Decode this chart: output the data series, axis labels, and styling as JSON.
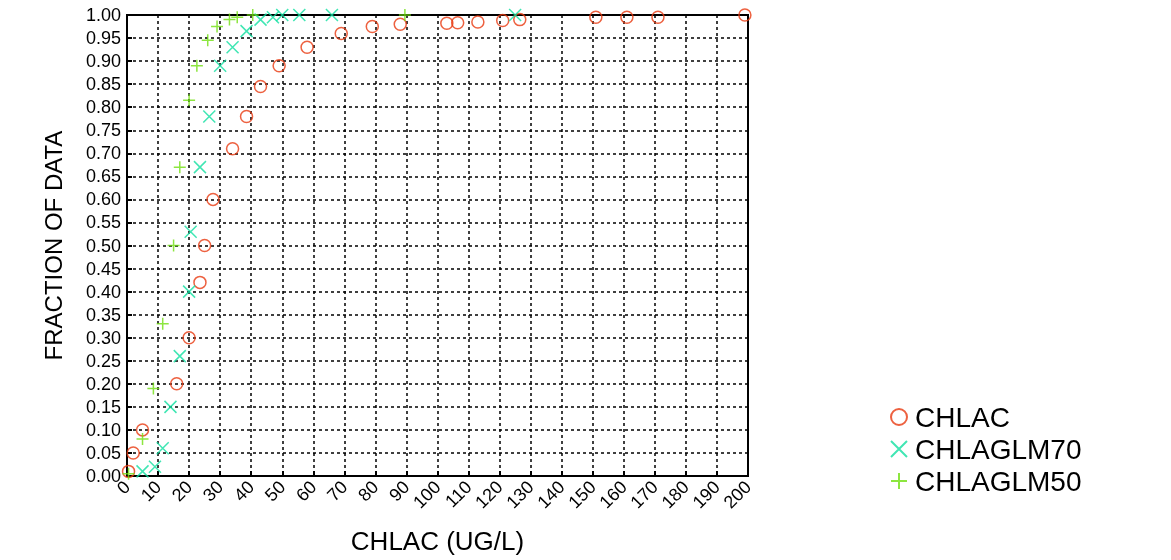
{
  "chart_data": {
    "type": "scatter",
    "xlabel": "CHLAC (UG/L)",
    "ylabel": "FRACTION OF DATA",
    "xlim": [
      0,
      200
    ],
    "xticks": [
      0,
      10,
      20,
      30,
      40,
      50,
      60,
      70,
      80,
      90,
      100,
      110,
      120,
      130,
      140,
      150,
      160,
      170,
      180,
      190,
      200
    ],
    "ylim": [
      0,
      1
    ],
    "yticks": [
      {
        "value": 0,
        "label": "0.00"
      },
      {
        "value": 0.05,
        "label": "0.05"
      },
      {
        "value": 0.1,
        "label": "0.10"
      },
      {
        "value": 0.15,
        "label": "0.15"
      },
      {
        "value": 0.2,
        "label": "0.20"
      },
      {
        "value": 0.25,
        "label": "0.25"
      },
      {
        "value": 0.3,
        "label": "0.30"
      },
      {
        "value": 0.35,
        "label": "0.35"
      },
      {
        "value": 0.4,
        "label": "0.40"
      },
      {
        "value": 0.45,
        "label": "0.45"
      },
      {
        "value": 0.5,
        "label": "0.50"
      },
      {
        "value": 0.55,
        "label": "0.55"
      },
      {
        "value": 0.6,
        "label": "0.60"
      },
      {
        "value": 0.65,
        "label": "0.65"
      },
      {
        "value": 0.7,
        "label": "0.70"
      },
      {
        "value": 0.75,
        "label": "0.75"
      },
      {
        "value": 0.8,
        "label": "0.80"
      },
      {
        "value": 0.85,
        "label": "0.85"
      },
      {
        "value": 0.9,
        "label": "0.90"
      },
      {
        "value": 0.95,
        "label": "0.95"
      },
      {
        "value": 1,
        "label": "1.00"
      }
    ],
    "grid": true,
    "legend": "bottom right",
    "series": [
      {
        "name": "CHLAC",
        "color": "#e83a10",
        "marker": "circle",
        "x": [
          0.5,
          2,
          5,
          16,
          20,
          23.5,
          25,
          27.7,
          34,
          38.5,
          43,
          49,
          58,
          69,
          79,
          88,
          103,
          106.5,
          113,
          121,
          126.5,
          151,
          161,
          171,
          199
        ],
        "values": [
          0.01,
          0.05,
          0.1,
          0.2,
          0.3,
          0.42,
          0.5,
          0.6,
          0.71,
          0.78,
          0.845,
          0.89,
          0.93,
          0.96,
          0.975,
          0.98,
          0.982,
          0.983,
          0.985,
          0.988,
          0.99,
          0.995,
          0.995,
          0.995,
          1
        ]
      },
      {
        "name": "CHLAGLM70",
        "color": "#10e0a0",
        "marker": "cross",
        "x": [
          5,
          9,
          11.5,
          14,
          17,
          20,
          20.5,
          23.5,
          26.5,
          30,
          34,
          38.5,
          43,
          47,
          50,
          55.5,
          66,
          125
        ],
        "values": [
          0.01,
          0.02,
          0.06,
          0.15,
          0.26,
          0.4,
          0.53,
          0.67,
          0.78,
          0.89,
          0.93,
          0.965,
          0.99,
          0.995,
          1,
          1,
          1,
          1
        ]
      },
      {
        "name": "CHLAGLM50",
        "color": "#70e010",
        "marker": "plus",
        "x": [
          0.5,
          5,
          8.5,
          11.5,
          15,
          17,
          20,
          22.5,
          26,
          29,
          33,
          35.5,
          40.5,
          89.5
        ],
        "values": [
          0.005,
          0.08,
          0.19,
          0.33,
          0.5,
          0.67,
          0.815,
          0.89,
          0.945,
          0.975,
          0.99,
          0.995,
          1,
          1
        ]
      }
    ]
  }
}
